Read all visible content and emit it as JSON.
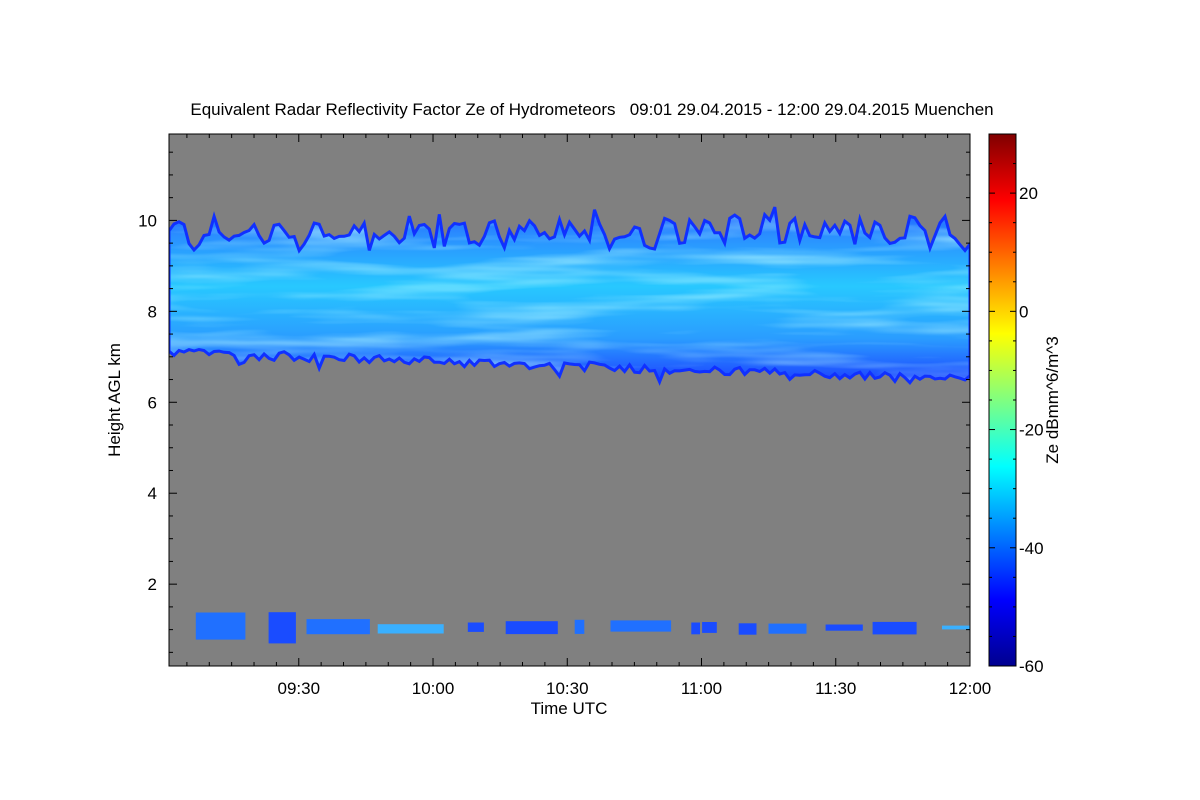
{
  "chart_data": {
    "type": "heatmap",
    "title": "Equivalent Radar Reflectivity Factor Ze of Hydrometeors   09:01 29.04.2015 - 12:00 29.04.2015 Muenchen",
    "xlabel": "Time UTC",
    "ylabel": "Height AGL km",
    "x_range": [
      "09:01",
      "12:00"
    ],
    "x_ticks": [
      "09:30",
      "10:00",
      "10:30",
      "11:00",
      "11:30",
      "12:00"
    ],
    "y_range": [
      0.2,
      11.9
    ],
    "y_ticks": [
      2,
      4,
      6,
      8,
      10
    ],
    "background_color": "#808080",
    "colorbar": {
      "label": "Ze dBmm^6/m^3",
      "range": [
        -60,
        30
      ],
      "ticks": [
        -60,
        -40,
        -20,
        0,
        20
      ],
      "colormap": [
        "#00008f",
        "#0000ff",
        "#0080ff",
        "#00ffff",
        "#80ff80",
        "#ffff00",
        "#ff8000",
        "#ff0000",
        "#800000"
      ]
    },
    "features": [
      {
        "layer": "ice cloud",
        "time_start": "09:01",
        "time_end": "12:00",
        "base_km_start": 7.1,
        "base_km_end": 6.5,
        "top_km": 9.7,
        "ze_dbz_range": [
          -50,
          -30
        ]
      },
      {
        "layer": "low echoes",
        "time_start": "09:07",
        "time_end": "12:00",
        "base_km": 0.7,
        "top_km": 1.4,
        "ze_dbz_range": [
          -50,
          -35
        ]
      }
    ]
  }
}
